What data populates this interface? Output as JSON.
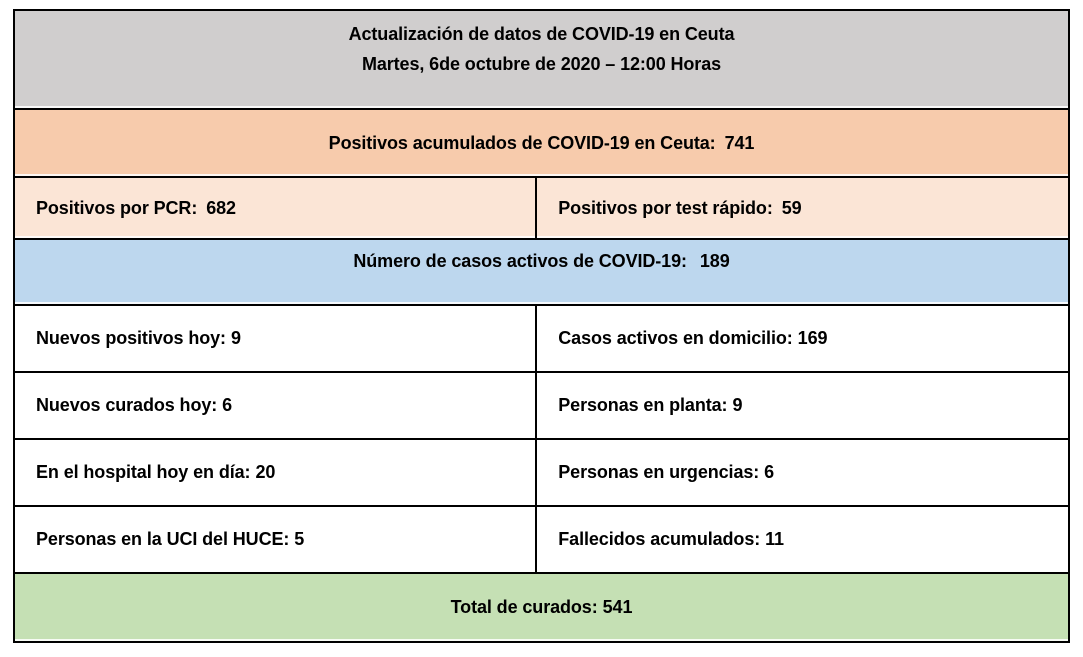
{
  "title": {
    "line1": "Actualización de datos de COVID-19 en Ceuta",
    "line2": "Martes, 6de octubre de 2020 – 12:00 Horas"
  },
  "summary": {
    "accumulated": {
      "label": "Positivos acumulados de COVID-19 en Ceuta:",
      "value": "741"
    },
    "pcr": {
      "label": "Positivos por PCR:",
      "value": "682"
    },
    "rapid_test": {
      "label": "Positivos por test rápido:",
      "value": "59"
    },
    "active_cases": {
      "label": "Número de casos activos de COVID-19:",
      "value": "189"
    },
    "total_recovered": {
      "label": "Total de curados:",
      "value": "541"
    }
  },
  "details": {
    "new_positives_today": {
      "label": "Nuevos positivos hoy:",
      "value": "9"
    },
    "active_at_home": {
      "label": "Casos activos en domicilio:",
      "value": "169"
    },
    "new_recovered_today": {
      "label": "Nuevos curados hoy:",
      "value": "6"
    },
    "on_ward": {
      "label": "Personas en planta:",
      "value": "9"
    },
    "in_hospital_today": {
      "label": "En el hospital hoy en día:",
      "value": "20"
    },
    "in_er": {
      "label": "Personas en urgencias:",
      "value": "6"
    },
    "in_icu_huce": {
      "label": "Personas en la UCI del HUCE:",
      "value": "5"
    },
    "accumulated_deaths": {
      "label": "Fallecidos acumulados:",
      "value": "11"
    }
  },
  "colors": {
    "header_bg": "#d0cece",
    "accumulated_bg": "#f7cbac",
    "breakdown_bg": "#fbe5d6",
    "active_bg": "#bdd7ee",
    "recovered_bg": "#c5e0b4",
    "border": "#000000",
    "text": "#000000",
    "page_bg": "#ffffff"
  }
}
